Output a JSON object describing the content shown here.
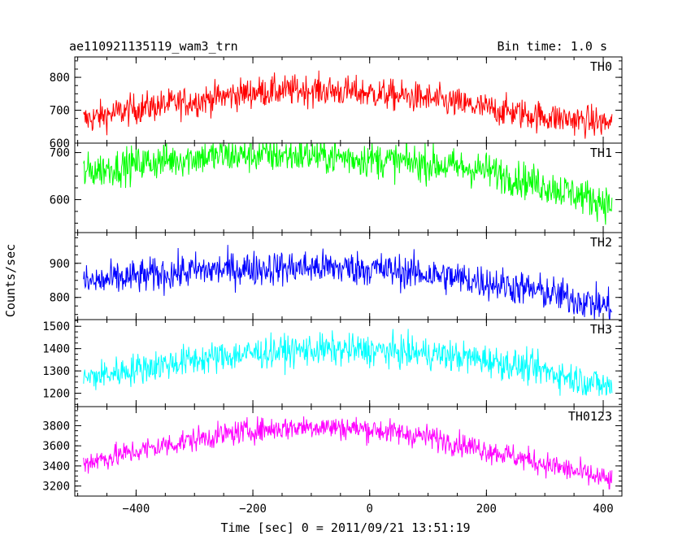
{
  "chart_data": {
    "type": "line",
    "title": "ae110921135119_wam3_trn",
    "bin_time_label": "Bin time: 1.0 s",
    "xlabel": "Time [sec] 0 = 2011/09/21 13:51:19",
    "ylabel": "Counts/sec",
    "xlim": [
      -505,
      432
    ],
    "xticks": [
      -400,
      -200,
      0,
      200,
      400
    ],
    "x_start": -490,
    "x_end": 415,
    "x_step": 1,
    "panels": [
      {
        "name": "TH0",
        "color": "#ff0000",
        "ylim": [
          600,
          862
        ],
        "yticks": [
          600,
          700,
          800
        ],
        "trend_x": [
          -490,
          -400,
          -300,
          -200,
          -100,
          0,
          100,
          200,
          300,
          415
        ],
        "trend_y": [
          670,
          705,
          728,
          755,
          762,
          752,
          735,
          705,
          680,
          660
        ],
        "noise": 33
      },
      {
        "name": "TH1",
        "color": "#00ff00",
        "ylim": [
          530,
          720
        ],
        "yticks": [
          600,
          700
        ],
        "trend_x": [
          -490,
          -400,
          -300,
          -200,
          -100,
          0,
          100,
          200,
          300,
          415
        ],
        "trend_y": [
          658,
          676,
          690,
          695,
          694,
          686,
          676,
          662,
          630,
          590
        ],
        "noise": 27
      },
      {
        "name": "TH2",
        "color": "#0000ff",
        "ylim": [
          735,
          990
        ],
        "yticks": [
          800,
          900
        ],
        "trend_x": [
          -490,
          -400,
          -300,
          -200,
          -100,
          0,
          100,
          200,
          300,
          415
        ],
        "trend_y": [
          842,
          860,
          878,
          885,
          888,
          885,
          868,
          845,
          815,
          770
        ],
        "noise": 36
      },
      {
        "name": "TH3",
        "color": "#00ffff",
        "ylim": [
          1140,
          1530
        ],
        "yticks": [
          1200,
          1300,
          1400,
          1500
        ],
        "trend_x": [
          -490,
          -400,
          -300,
          -200,
          -100,
          0,
          100,
          200,
          300,
          415
        ],
        "trend_y": [
          1265,
          1310,
          1350,
          1380,
          1395,
          1392,
          1378,
          1350,
          1300,
          1225
        ],
        "noise": 50
      },
      {
        "name": "TH0123",
        "color": "#ff00ff",
        "ylim": [
          3100,
          3990
        ],
        "yticks": [
          3200,
          3400,
          3600,
          3800
        ],
        "trend_x": [
          -490,
          -400,
          -300,
          -200,
          -100,
          0,
          100,
          200,
          300,
          415
        ],
        "trend_y": [
          3430,
          3545,
          3665,
          3755,
          3795,
          3765,
          3690,
          3560,
          3420,
          3250
        ],
        "noise": 85
      }
    ]
  }
}
